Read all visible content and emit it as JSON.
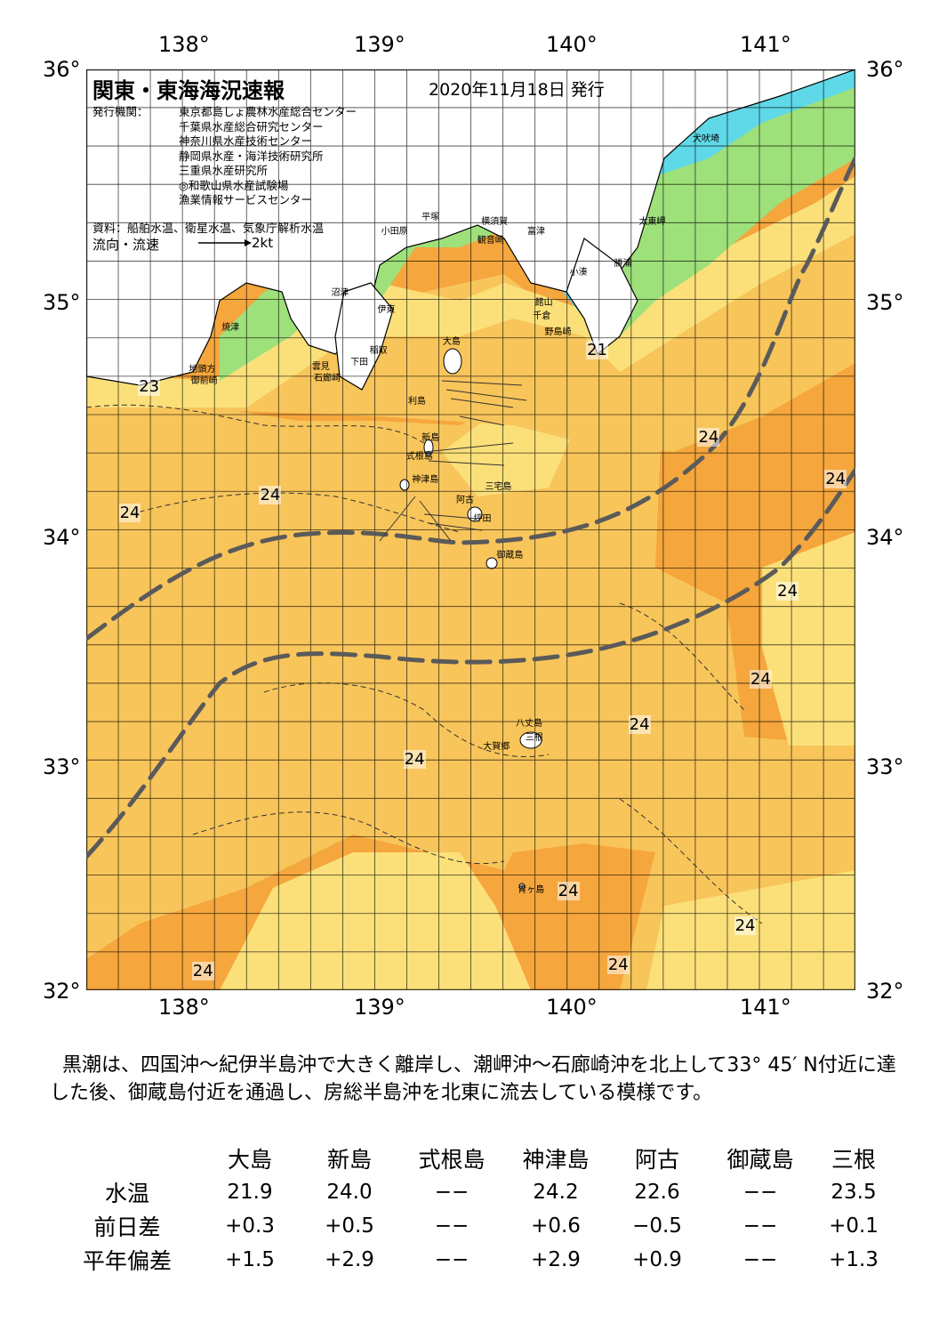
{
  "title": "関東・東海海況速報",
  "issued": "2020年11月18日 発行",
  "publisher_label": "発行機関：",
  "publishers": [
    "東京都島しょ農林水産総合センター",
    "千葉県水産総合研究センター",
    "神奈川県水産技術センター",
    "静岡県水産・海洋技術研究所",
    "三重県水産研究所",
    "◎和歌山県水産試験場",
    "漁業情報サービスセンター"
  ],
  "source": "資料：船舶水温、衛星水温、気象庁解析水温",
  "flow_label": "流向・流速",
  "flow_unit": "2kt",
  "axes": {
    "lon_labels": [
      "138°",
      "139°",
      "140°",
      "141°"
    ],
    "lat_labels": [
      "36°",
      "35°",
      "34°",
      "33°",
      "32°"
    ],
    "lon_range": [
      137.5,
      141.5
    ],
    "lat_range": [
      32.0,
      36.0
    ],
    "grid_step_deg": 0.1667
  },
  "colors": {
    "ocean_warm": "#f5a63c",
    "ocean_mid": "#f8c55a",
    "ocean_pale": "#fbe07a",
    "cool_green": "#9ee07a",
    "cold_cyan": "#5fd8e8",
    "land": "#ffffff",
    "kuroshio_line": "#5a5a5a"
  },
  "temp_labels": [
    {
      "text": "23",
      "lon": 137.82,
      "lat": 34.62
    },
    {
      "text": "24",
      "lon": 137.72,
      "lat": 34.07
    },
    {
      "text": "24",
      "lon": 138.45,
      "lat": 34.15
    },
    {
      "text": "21",
      "lon": 140.15,
      "lat": 34.78
    },
    {
      "text": "24",
      "lon": 140.73,
      "lat": 34.4
    },
    {
      "text": "24",
      "lon": 141.39,
      "lat": 34.22
    },
    {
      "text": "24",
      "lon": 141.14,
      "lat": 33.73
    },
    {
      "text": "24",
      "lon": 141.0,
      "lat": 33.35
    },
    {
      "text": "24",
      "lon": 140.37,
      "lat": 33.15
    },
    {
      "text": "24",
      "lon": 139.2,
      "lat": 33.0
    },
    {
      "text": "24",
      "lon": 140.0,
      "lat": 32.43
    },
    {
      "text": "24",
      "lon": 140.92,
      "lat": 32.28
    },
    {
      "text": "24",
      "lon": 140.26,
      "lat": 32.11
    },
    {
      "text": "24",
      "lon": 138.1,
      "lat": 32.08
    }
  ],
  "places": [
    {
      "text": "犬吠埼",
      "lon": 140.7,
      "lat": 35.71
    },
    {
      "text": "太東岬",
      "lon": 140.42,
      "lat": 35.35
    },
    {
      "text": "勝浦",
      "lon": 140.29,
      "lat": 35.17
    },
    {
      "text": "小湊",
      "lon": 140.06,
      "lat": 35.13
    },
    {
      "text": "富津",
      "lon": 139.84,
      "lat": 35.31
    },
    {
      "text": "観音崎",
      "lon": 139.58,
      "lat": 35.27
    },
    {
      "text": "横須賀",
      "lon": 139.6,
      "lat": 35.35
    },
    {
      "text": "平塚",
      "lon": 139.29,
      "lat": 35.37
    },
    {
      "text": "小田原",
      "lon": 139.08,
      "lat": 35.31
    },
    {
      "text": "館山",
      "lon": 139.88,
      "lat": 35.0
    },
    {
      "text": "千倉",
      "lon": 139.87,
      "lat": 34.94
    },
    {
      "text": "野島崎",
      "lon": 139.93,
      "lat": 34.87
    },
    {
      "text": "大島",
      "lon": 139.4,
      "lat": 34.83
    },
    {
      "text": "伊東",
      "lon": 139.06,
      "lat": 34.97
    },
    {
      "text": "沼津",
      "lon": 138.82,
      "lat": 35.04
    },
    {
      "text": "焼津",
      "lon": 138.25,
      "lat": 34.89
    },
    {
      "text": "稲取",
      "lon": 139.02,
      "lat": 34.79
    },
    {
      "text": "下田",
      "lon": 138.92,
      "lat": 34.74
    },
    {
      "text": "雲見",
      "lon": 138.72,
      "lat": 34.72
    },
    {
      "text": "石廊崎",
      "lon": 138.73,
      "lat": 34.67
    },
    {
      "text": "地頭方",
      "lon": 138.08,
      "lat": 34.71
    },
    {
      "text": "御前崎",
      "lon": 138.09,
      "lat": 34.66
    },
    {
      "text": "利島",
      "lon": 139.22,
      "lat": 34.57
    },
    {
      "text": "新島",
      "lon": 139.29,
      "lat": 34.41
    },
    {
      "text": "式根島",
      "lon": 139.21,
      "lat": 34.33
    },
    {
      "text": "神津島",
      "lon": 139.24,
      "lat": 34.23
    },
    {
      "text": "三宅島",
      "lon": 139.62,
      "lat": 34.2
    },
    {
      "text": "阿古",
      "lon": 139.47,
      "lat": 34.14
    },
    {
      "text": "坪田",
      "lon": 139.56,
      "lat": 34.06
    },
    {
      "text": "御蔵島",
      "lon": 139.68,
      "lat": 33.9
    },
    {
      "text": "八丈島",
      "lon": 139.78,
      "lat": 33.17
    },
    {
      "text": "三根",
      "lon": 139.83,
      "lat": 33.11
    },
    {
      "text": "大賀郷",
      "lon": 139.61,
      "lat": 33.07
    },
    {
      "text": "青ヶ島",
      "lon": 139.79,
      "lat": 32.45
    }
  ],
  "summary": "黒潮は、四国沖～紀伊半島沖で大きく離岸し、潮岬沖～石廊崎沖を北上して33° 45′ N付近に達した後、御蔵島付近を通過し、房総半島沖を北東に流去している模様です。",
  "table": {
    "headers": [
      "",
      "大島",
      "新島",
      "式根島",
      "神津島",
      "阿古",
      "御蔵島",
      "三根"
    ],
    "rows": [
      [
        "水温",
        "21.9",
        "24.0",
        "−−",
        "24.2",
        "22.6",
        "−−",
        "23.5"
      ],
      [
        "前日差",
        "+0.3",
        "+0.5",
        "−−",
        "+0.6",
        "−0.5",
        "−−",
        "+0.1"
      ],
      [
        "平年偏差",
        "+1.5",
        "+2.9",
        "−−",
        "+2.9",
        "+0.9",
        "−−",
        "+1.3"
      ]
    ]
  }
}
